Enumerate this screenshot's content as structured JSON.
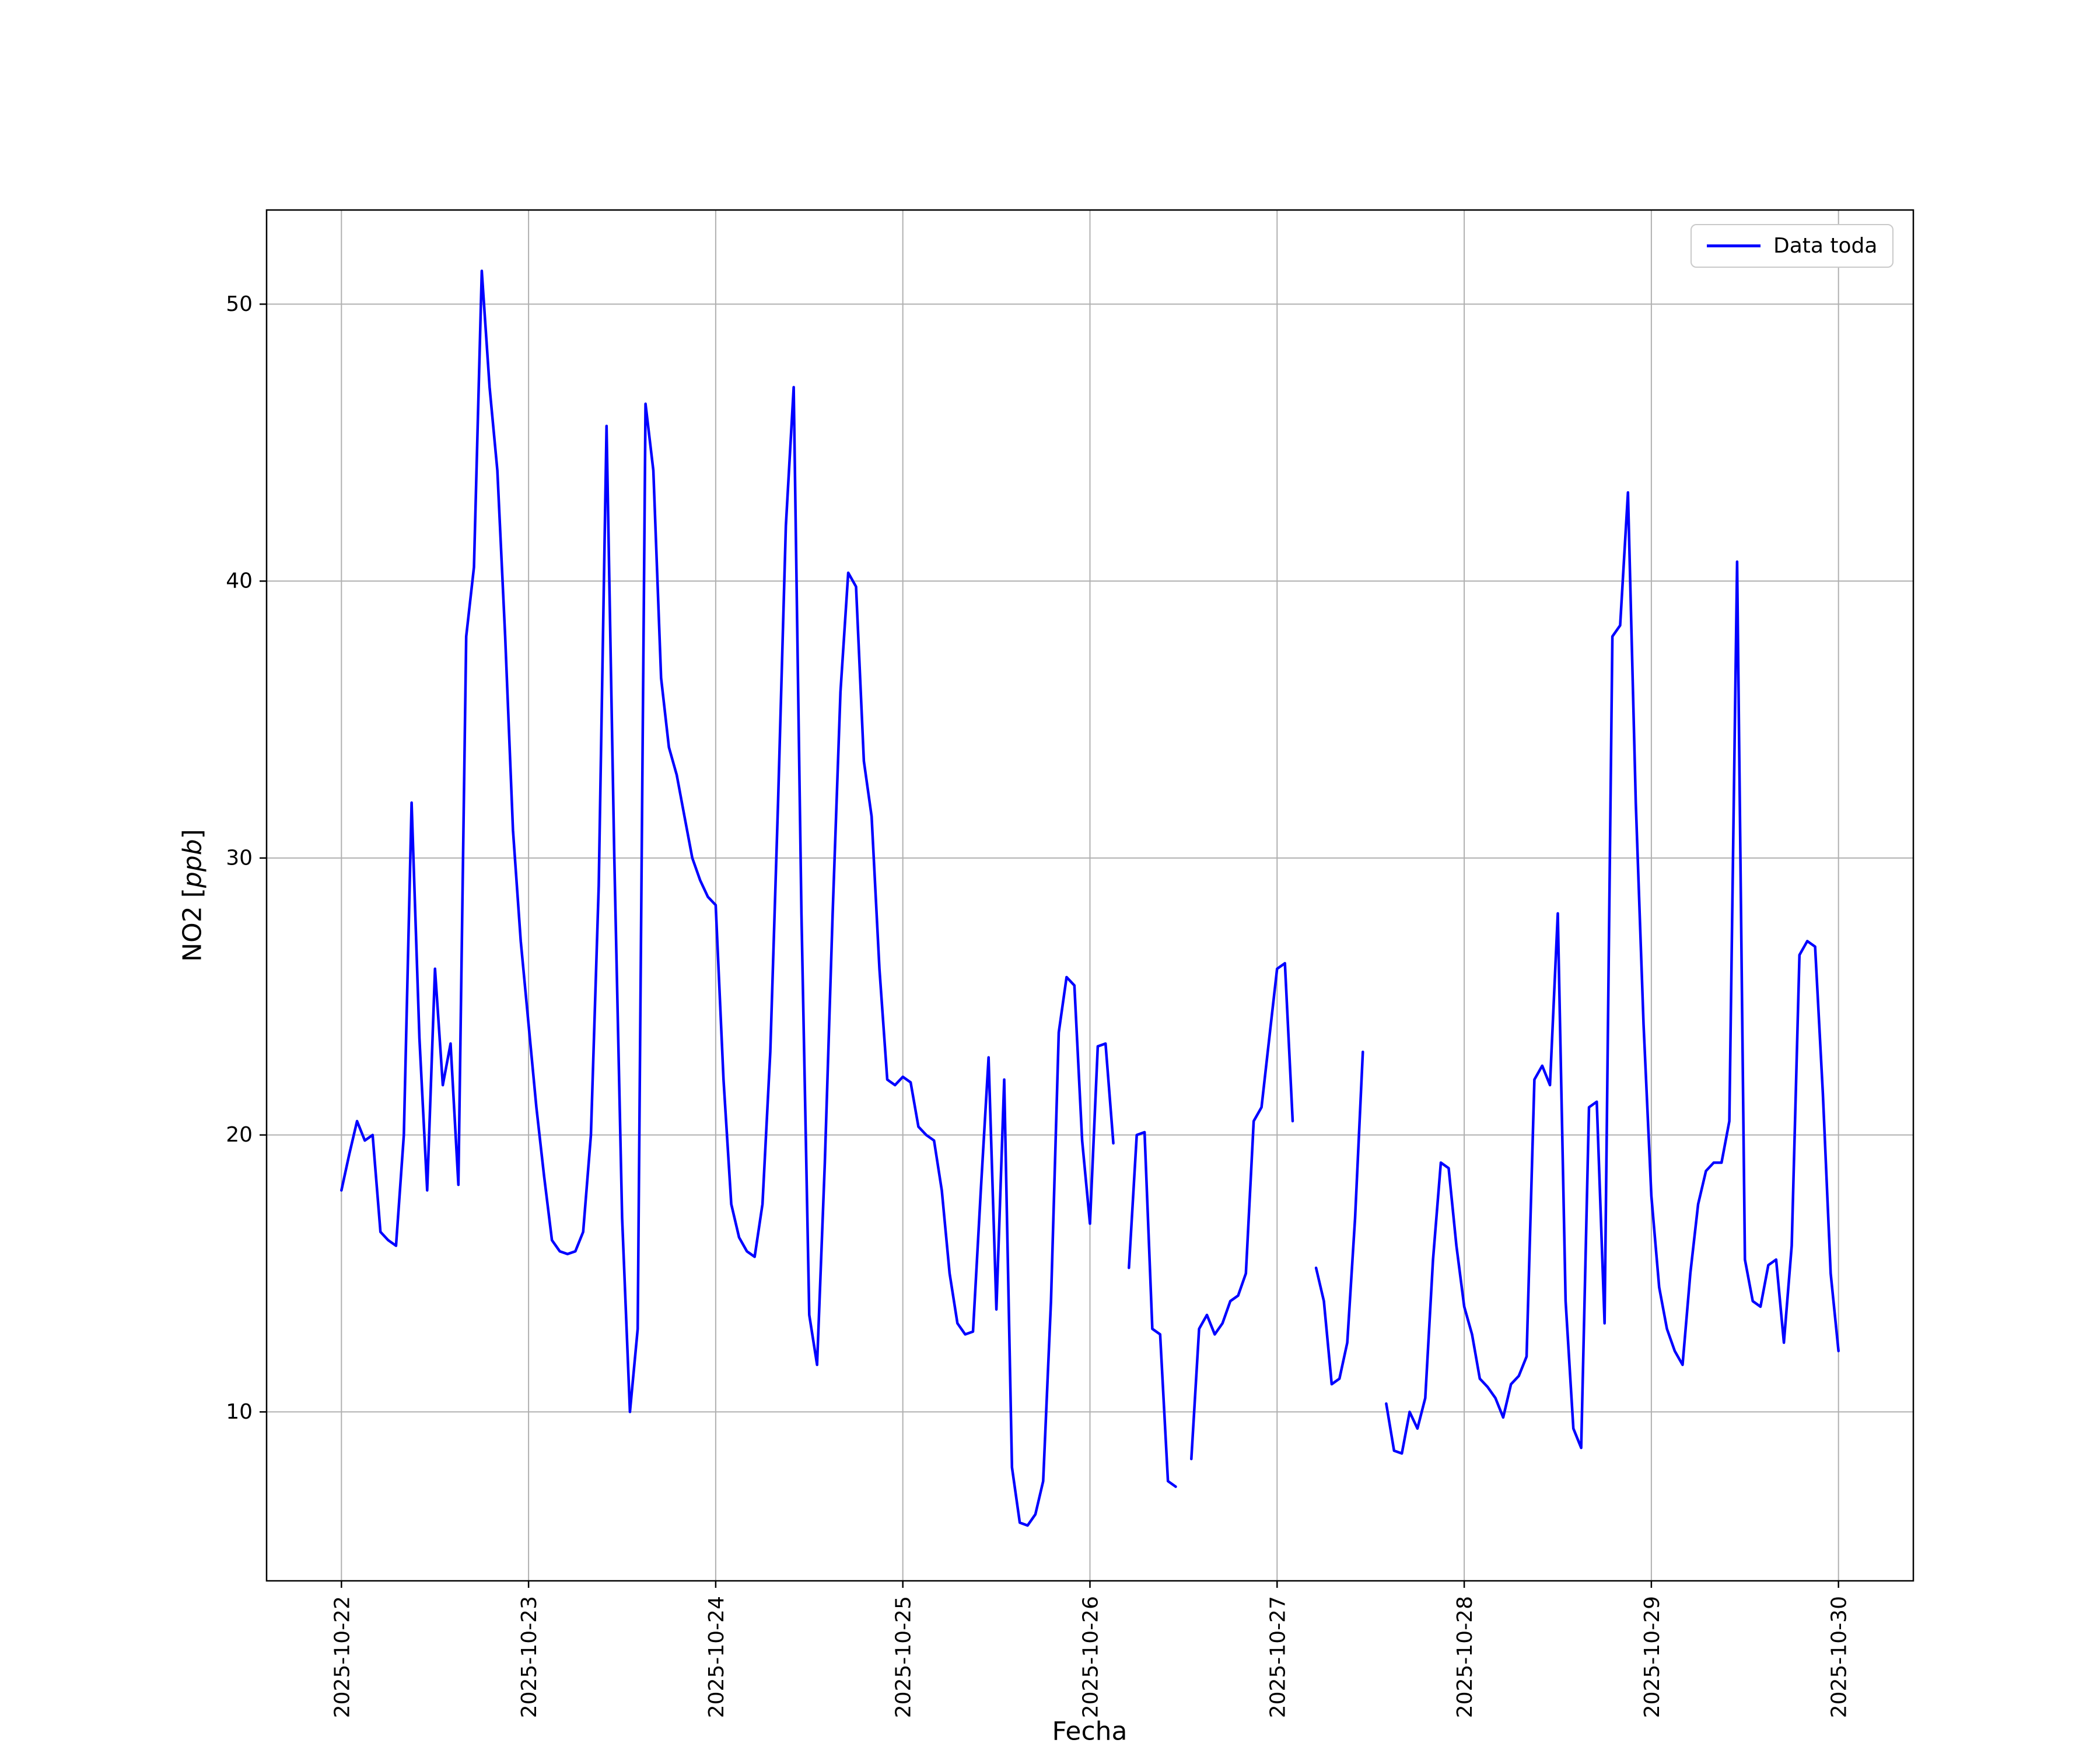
{
  "chart_data": {
    "type": "line",
    "title": "",
    "xlabel": "Fecha",
    "ylabel": "NO2 [ppb]",
    "ylabel_parts": {
      "prefix": "NO2 [",
      "italic": "ppb",
      "suffix": "]"
    },
    "legend": {
      "label": "Data toda",
      "location": "upper right"
    },
    "grid": true,
    "x_tick_labels": [
      "2025-10-22",
      "2025-10-23",
      "2025-10-24",
      "2025-10-25",
      "2025-10-26",
      "2025-10-27",
      "2025-10-28",
      "2025-10-29",
      "2025-10-30"
    ],
    "x_tick_hours": [
      0,
      24,
      48,
      72,
      96,
      120,
      144,
      168,
      192
    ],
    "y_ticks": [
      10,
      20,
      30,
      40,
      50
    ],
    "xlim_hours": [
      -9.6,
      201.6
    ],
    "ylim": [
      3.9,
      53.4
    ],
    "series": [
      {
        "name": "Data toda",
        "color": "#0000ff",
        "x_start": "2025-10-22 00:00",
        "x_step_hours": 1,
        "values": [
          18.0,
          19.3,
          20.5,
          19.8,
          20.0,
          16.5,
          16.2,
          16.0,
          20.0,
          32.0,
          23.5,
          18.0,
          26.0,
          21.8,
          23.3,
          18.2,
          38.0,
          40.5,
          51.2,
          47.0,
          44.0,
          38.0,
          31.0,
          27.0,
          24.0,
          21.0,
          18.5,
          16.2,
          15.8,
          15.7,
          15.8,
          16.5,
          20.0,
          29.0,
          45.6,
          30.0,
          17.0,
          10.0,
          13.0,
          46.4,
          44.0,
          36.5,
          34.0,
          33.0,
          31.5,
          30.0,
          29.2,
          28.6,
          28.3,
          22.0,
          17.5,
          16.3,
          15.8,
          15.6,
          17.5,
          23.0,
          32.0,
          42.0,
          47.0,
          28.0,
          13.5,
          11.7,
          19.0,
          28.0,
          36.0,
          40.3,
          39.8,
          33.5,
          31.5,
          26.0,
          22.0,
          21.8,
          22.1,
          21.9,
          20.3,
          20.0,
          19.8,
          18.0,
          15.0,
          13.2,
          12.8,
          12.9,
          18.0,
          22.8,
          13.7,
          22.0,
          8.0,
          6.0,
          5.9,
          6.3,
          7.5,
          14.0,
          23.7,
          25.7,
          25.4,
          19.8,
          16.8,
          23.2,
          23.3,
          19.7,
          null,
          15.2,
          20.0,
          20.1,
          13.0,
          12.8,
          7.5,
          7.3,
          null,
          8.3,
          13.0,
          13.5,
          12.8,
          13.2,
          14.0,
          14.2,
          15.0,
          20.5,
          21.0,
          23.5,
          26.0,
          26.2,
          20.5,
          null,
          null,
          15.2,
          14.0,
          11.0,
          11.2,
          12.5,
          17.0,
          23.0,
          null,
          null,
          10.3,
          8.6,
          8.5,
          10.0,
          9.4,
          10.5,
          15.5,
          19.0,
          18.8,
          16.0,
          13.8,
          12.8,
          11.2,
          10.9,
          10.5,
          9.8,
          11.0,
          11.3,
          12.0,
          22.0,
          22.5,
          21.8,
          28.0,
          14.0,
          9.4,
          8.7,
          21.0,
          21.2,
          13.2,
          38.0,
          38.4,
          43.2,
          32.0,
          24.0,
          17.8,
          14.5,
          13.0,
          12.2,
          11.7,
          15.0,
          17.5,
          18.7,
          19.0,
          19.0,
          20.5,
          40.7,
          15.5,
          14.0,
          13.8,
          15.3,
          15.5,
          12.5,
          16.0,
          26.5,
          27.0,
          26.8,
          21.5,
          15.0,
          12.2
        ]
      }
    ]
  }
}
